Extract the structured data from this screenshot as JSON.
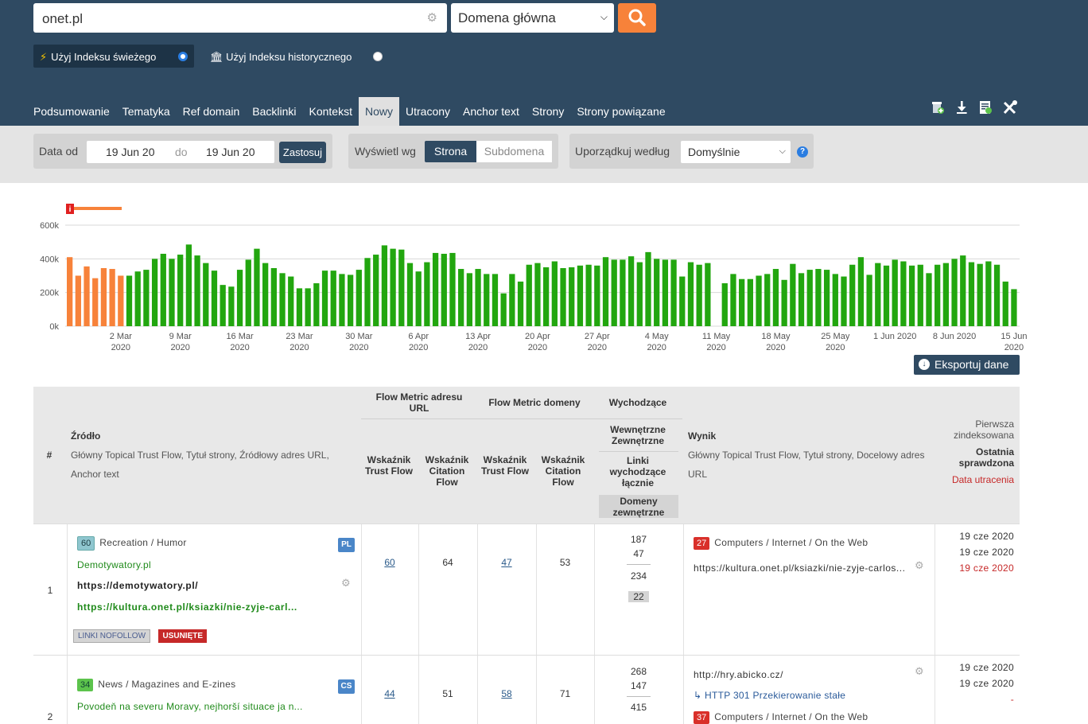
{
  "header": {
    "search_value": "onet.pl",
    "scope_select": "Domena główna",
    "index_fresh_label": "Użyj Indeksu świeżego",
    "index_historic_label": "Użyj Indeksu historycznego",
    "tabs": [
      "Podsumowanie",
      "Tematyka",
      "Ref domain",
      "Backlinki",
      "Kontekst",
      "Nowy",
      "Utracony",
      "Anchor text",
      "Strony",
      "Strony powiązane"
    ],
    "active_tab": "Nowy"
  },
  "filter": {
    "date_from_label": "Data od",
    "date_from": "19 Jun 20",
    "date_to_label": "do",
    "date_to": "19 Jun 20",
    "apply_label": "Zastosuj",
    "display_label": "Wyświetl wg",
    "display_on": "Strona",
    "display_off": "Subdomena",
    "sort_label": "Uporządkuj według",
    "sort_value": "Domyślnie",
    "help": "?"
  },
  "chart_data": {
    "type": "bar",
    "ylim": [
      0,
      600000
    ],
    "yticks": [
      "600k",
      "400k",
      "200k",
      "0k"
    ],
    "marker": "i",
    "xtick_labels": [
      [
        "2 Mar",
        "2020"
      ],
      [
        "9 Mar",
        "2020"
      ],
      [
        "16 Mar",
        "2020"
      ],
      [
        "23 Mar",
        "2020"
      ],
      [
        "30 Mar",
        "2020"
      ],
      [
        "6 Apr",
        "2020"
      ],
      [
        "13 Apr",
        "2020"
      ],
      [
        "20 Apr",
        "2020"
      ],
      [
        "27 Apr",
        "2020"
      ],
      [
        "4 May",
        "2020"
      ],
      [
        "11 May",
        "2020"
      ],
      [
        "18 May",
        "2020"
      ],
      [
        "25 May",
        "2020"
      ],
      [
        "1 Jun 2020",
        ""
      ],
      [
        "8 Jun 2020",
        ""
      ],
      [
        "15 Jun",
        "2020"
      ]
    ],
    "series": [
      {
        "color": "#f7823a",
        "values": [
          410000,
          300000,
          355000,
          285000,
          345000,
          340000,
          300000
        ]
      },
      {
        "color": "#22a60f",
        "values": [
          300000,
          325000,
          335000,
          400000,
          430000,
          400000,
          425000,
          485000,
          420000,
          375000,
          330000,
          245000,
          235000,
          335000,
          395000,
          460000,
          375000,
          345000,
          315000,
          295000,
          225000,
          225000,
          255000,
          330000,
          330000,
          310000,
          305000,
          335000,
          405000,
          425000,
          480000,
          460000,
          455000,
          375000,
          325000,
          380000,
          435000,
          430000,
          435000,
          340000,
          315000,
          340000,
          310000,
          310000,
          195000,
          310000,
          265000,
          365000,
          375000,
          350000,
          385000,
          345000,
          350000,
          360000,
          365000,
          360000,
          410000,
          395000,
          395000,
          415000,
          380000,
          440000,
          400000,
          395000,
          395000,
          295000,
          380000,
          365000,
          375000,
          0,
          255000,
          310000,
          280000,
          280000,
          300000,
          310000,
          340000,
          275000,
          370000,
          315000,
          335000,
          340000,
          335000,
          310000,
          295000,
          365000,
          410000,
          305000,
          375000,
          360000,
          395000,
          385000,
          360000,
          365000,
          315000,
          365000,
          375000,
          400000,
          420000,
          380000,
          370000,
          385000,
          365000,
          265000,
          220000
        ]
      }
    ]
  },
  "export_label": "Eksportuj dane",
  "table": {
    "col_num": "#",
    "col_source": "Źródło",
    "col_source_sub": [
      "Główny Topical Trust Flow, Tytuł strony, Źródłowy adres URL,",
      "Anchor text"
    ],
    "group_url": "Flow Metric adresu URL",
    "group_domain": "Flow Metric domeny",
    "group_out": "Wychodzące",
    "tf_label": "Wskaźnik Trust Flow",
    "cf_label": "Wskaźnik Citation Flow",
    "out_intext": "Wewnętrzne Zewnętrzne",
    "out_total": "Linki wychodzące łącznie",
    "out_domains": "Domeny zewnętrzne",
    "col_result": "Wynik",
    "col_result_sub": [
      "Główny Topical Trust Flow, Tytuł strony, Docelowy adres",
      "URL"
    ],
    "col_first": "Pierwsza zindeksowana",
    "col_last": "Ostatnia sprawdzona",
    "col_lost": "Data utracenia",
    "rows": [
      {
        "num": "1",
        "tf_badge": "60",
        "category": "Recreation / Humor",
        "lang": "PL",
        "title": "Demotywatory.pl",
        "source_url": "https://demotywatory.pl/",
        "anchor": "https://kultura.onet.pl/ksiazki/nie-zyje-carl...",
        "tag1": "LINKI NOFOLLOW",
        "tag2": "USUNIĘTE",
        "url_tf": "60",
        "url_cf": "64",
        "dom_tf": "47",
        "dom_cf": "53",
        "ext": "187",
        "int": "47",
        "total": "234",
        "domains": "22",
        "res_badge": "27",
        "res_category": "Computers / Internet / On the Web",
        "res_url": "https://kultura.onet.pl/ksiazki/nie-zyje-carlos...",
        "first": "19 cze 2020",
        "last": "19 cze 2020",
        "lost": "19 cze 2020"
      },
      {
        "num": "2",
        "tf_badge": "34",
        "category": "News / Magazines and E-zines",
        "lang": "CS",
        "title": "Povodeň na severu Moravy, nejhorší situace ja n...",
        "url_tf": "44",
        "url_cf": "51",
        "dom_tf": "58",
        "dom_cf": "71",
        "ext": "268",
        "int": "147",
        "total": "415",
        "res_url": "http://hry.abicko.cz/",
        "redirect": "HTTP 301 Przekierowanie stałe",
        "res_badge": "37",
        "res_category": "Computers / Internet / On the Web",
        "first": "19 cze 2020",
        "last": "19 cze 2020",
        "lost": "-"
      }
    ]
  }
}
